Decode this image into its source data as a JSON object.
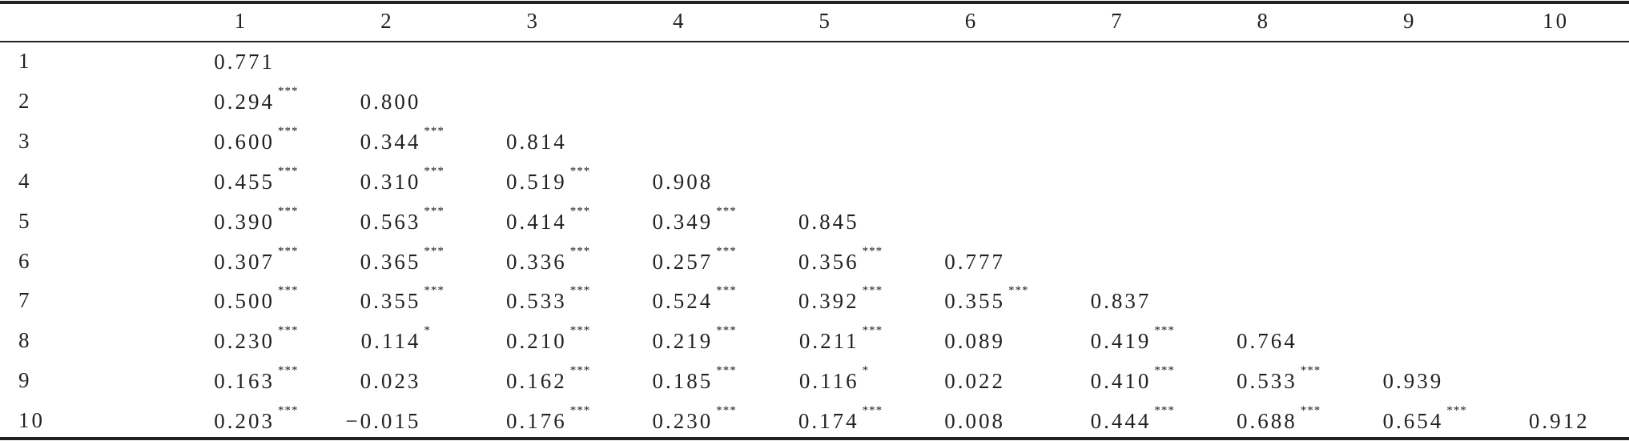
{
  "table": {
    "columns": [
      "1",
      "2",
      "3",
      "4",
      "5",
      "6",
      "7",
      "8",
      "9",
      "10"
    ],
    "rows": [
      {
        "label": "1",
        "cells": [
          {
            "v": "0.771"
          }
        ]
      },
      {
        "label": "2",
        "cells": [
          {
            "v": "0.294",
            "sig": "***"
          },
          {
            "v": "0.800"
          }
        ]
      },
      {
        "label": "3",
        "cells": [
          {
            "v": "0.600",
            "sig": "***"
          },
          {
            "v": "0.344",
            "sig": "***"
          },
          {
            "v": "0.814"
          }
        ]
      },
      {
        "label": "4",
        "cells": [
          {
            "v": "0.455",
            "sig": "***"
          },
          {
            "v": "0.310",
            "sig": "***"
          },
          {
            "v": "0.519",
            "sig": "***"
          },
          {
            "v": "0.908"
          }
        ]
      },
      {
        "label": "5",
        "cells": [
          {
            "v": "0.390",
            "sig": "***"
          },
          {
            "v": "0.563",
            "sig": "***"
          },
          {
            "v": "0.414",
            "sig": "***"
          },
          {
            "v": "0.349",
            "sig": "***"
          },
          {
            "v": "0.845"
          }
        ]
      },
      {
        "label": "6",
        "cells": [
          {
            "v": "0.307",
            "sig": "***"
          },
          {
            "v": "0.365",
            "sig": "***"
          },
          {
            "v": "0.336",
            "sig": "***"
          },
          {
            "v": "0.257",
            "sig": "***"
          },
          {
            "v": "0.356",
            "sig": "***"
          },
          {
            "v": "0.777"
          }
        ]
      },
      {
        "label": "7",
        "cells": [
          {
            "v": "0.500",
            "sig": "***"
          },
          {
            "v": "0.355",
            "sig": "***"
          },
          {
            "v": "0.533",
            "sig": "***"
          },
          {
            "v": "0.524",
            "sig": "***"
          },
          {
            "v": "0.392",
            "sig": "***"
          },
          {
            "v": "0.355",
            "sig": "***"
          },
          {
            "v": "0.837"
          }
        ]
      },
      {
        "label": "8",
        "cells": [
          {
            "v": "0.230",
            "sig": "***"
          },
          {
            "v": "0.114",
            "sig": "*"
          },
          {
            "v": "0.210",
            "sig": "***"
          },
          {
            "v": "0.219",
            "sig": "***"
          },
          {
            "v": "0.211",
            "sig": "***"
          },
          {
            "v": "0.089"
          },
          {
            "v": "0.419",
            "sig": "***"
          },
          {
            "v": "0.764"
          }
        ]
      },
      {
        "label": "9",
        "cells": [
          {
            "v": "0.163",
            "sig": "***"
          },
          {
            "v": "0.023"
          },
          {
            "v": "0.162",
            "sig": "***"
          },
          {
            "v": "0.185",
            "sig": "***"
          },
          {
            "v": "0.116",
            "sig": "*"
          },
          {
            "v": "0.022"
          },
          {
            "v": "0.410",
            "sig": "***"
          },
          {
            "v": "0.533",
            "sig": "***"
          },
          {
            "v": "0.939"
          }
        ]
      },
      {
        "label": "10",
        "cells": [
          {
            "v": "0.203",
            "sig": "***"
          },
          {
            "v": "−0.015"
          },
          {
            "v": "0.176",
            "sig": "***"
          },
          {
            "v": "0.230",
            "sig": "***"
          },
          {
            "v": "0.174",
            "sig": "***"
          },
          {
            "v": "0.008"
          },
          {
            "v": "0.444",
            "sig": "***"
          },
          {
            "v": "0.688",
            "sig": "***"
          },
          {
            "v": "0.654",
            "sig": "***"
          },
          {
            "v": "0.912"
          }
        ]
      }
    ]
  }
}
